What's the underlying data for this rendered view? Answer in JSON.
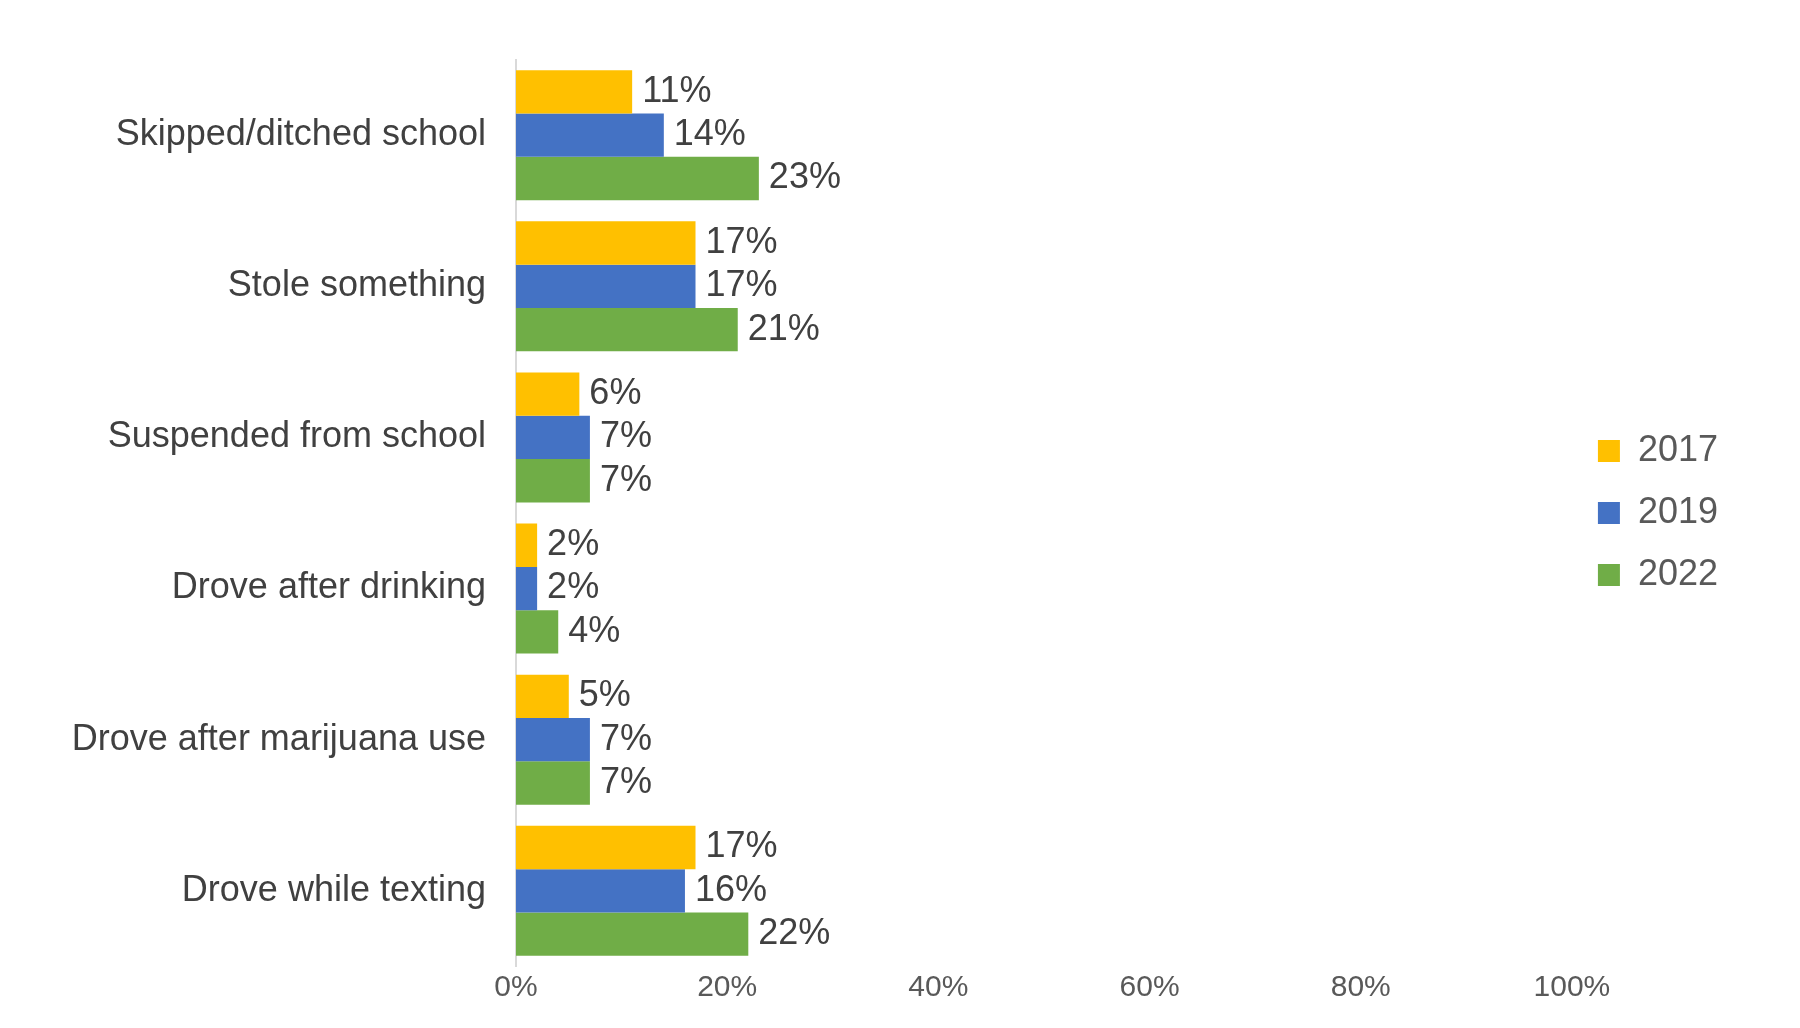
{
  "chart_data": {
    "type": "bar",
    "orientation": "horizontal",
    "categories": [
      "Skipped/ditched school",
      "Stole something",
      "Suspended from school",
      "Drove after drinking",
      "Drove after marijuana use",
      "Drove while texting"
    ],
    "series": [
      {
        "name": "2017",
        "color": "#ffc000",
        "values": [
          11,
          17,
          6,
          2,
          5,
          17
        ],
        "value_labels": [
          "11%",
          "17%",
          "6%",
          "2%",
          "5%",
          "17%"
        ]
      },
      {
        "name": "2019",
        "color": "#4472c4",
        "values": [
          14,
          17,
          7,
          2,
          7,
          16
        ],
        "value_labels": [
          "14%",
          "17%",
          "7%",
          "2%",
          "7%",
          "16%"
        ]
      },
      {
        "name": "2022",
        "color": "#70ad47",
        "values": [
          23,
          21,
          7,
          4,
          7,
          22
        ],
        "value_labels": [
          "23%",
          "21%",
          "7%",
          "4%",
          "7%",
          "22%"
        ]
      }
    ],
    "xlim": [
      0,
      100
    ],
    "xticks": [
      {
        "value": 0,
        "label": "0%"
      },
      {
        "value": 20,
        "label": "20%"
      },
      {
        "value": 40,
        "label": "40%"
      },
      {
        "value": 60,
        "label": "60%"
      },
      {
        "value": 80,
        "label": "80%"
      },
      {
        "value": 100,
        "label": "100%"
      }
    ],
    "grid": false,
    "legend": "right"
  }
}
